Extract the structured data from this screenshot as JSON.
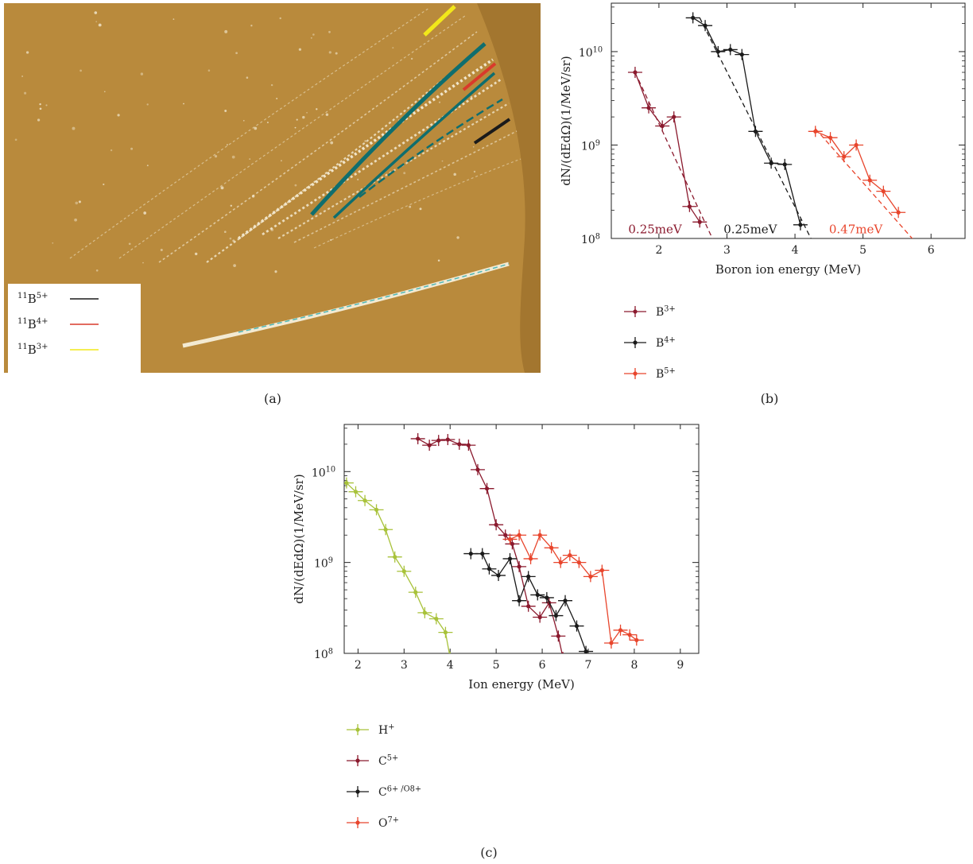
{
  "figure": {
    "panel_labels": [
      "(a)",
      "(b)",
      "(c)"
    ],
    "panel_a": {
      "legend": [
        {
          "mass": "11",
          "ion": "B",
          "charge": "5+",
          "color": "#1a1a1a"
        },
        {
          "mass": "11",
          "ion": "B",
          "charge": "4+",
          "color": "#d93a2b"
        },
        {
          "mass": "11",
          "ion": "B",
          "charge": "3+",
          "color": "#f2e81a"
        }
      ],
      "colors": {
        "background": "#b98a3c",
        "track": "#f3ead2",
        "highlight": "#0f6e6e"
      }
    }
  },
  "chart_data": [
    {
      "type": "scatter",
      "panel": "b",
      "xlabel": "Boron ion energy (MeV)",
      "ylabel": "dN/(dEdΩ)(1/MeV/sr)",
      "xlim": [
        1.3,
        6.5
      ],
      "ylim": [
        100000000,
        33000000000
      ],
      "yscale": "log",
      "xticks": [
        "2",
        "3",
        "4",
        "5",
        "6"
      ],
      "yticks": [
        {
          "base": "10",
          "exp": "8",
          "value": 100000000
        },
        {
          "base": "10",
          "exp": "9",
          "value": 1000000000
        },
        {
          "base": "10",
          "exp": "10",
          "value": 10000000000
        }
      ],
      "legend_position": "below",
      "annotations": [
        {
          "text": "0.25meV",
          "x": 1.55,
          "y": 130000000,
          "color": "#8b1a2e"
        },
        {
          "text": "0.25meV",
          "x": 2.95,
          "y": 130000000,
          "color": "#1a1a1a"
        },
        {
          "text": "0.47meV",
          "x": 4.5,
          "y": 130000000,
          "color": "#e8452c"
        }
      ],
      "series": [
        {
          "name": "B",
          "charge": "3+",
          "color": "#8b1a2e",
          "x": [
            1.65,
            1.85,
            2.05,
            2.22,
            2.45,
            2.6
          ],
          "y": [
            6000000000,
            2500000000,
            1600000000,
            2000000000,
            220000000,
            150000000
          ],
          "fit": {
            "x": [
              1.7,
              2.8
            ],
            "y": [
              5000000000,
              95000000
            ]
          }
        },
        {
          "name": "B",
          "charge": "4+",
          "color": "#1a1a1a",
          "x": [
            2.5,
            2.68,
            2.87,
            3.05,
            3.22,
            3.42,
            3.65,
            3.85,
            4.08
          ],
          "y": [
            23000000000,
            19000000000,
            10000000000,
            10500000000,
            9300000000,
            1400000000,
            640000000,
            620000000,
            140000000
          ],
          "fit": {
            "x": [
              2.6,
              4.25
            ],
            "y": [
              23000000000,
              95000000
            ]
          }
        },
        {
          "name": "B",
          "charge": "5+",
          "color": "#e8452c",
          "x": [
            4.3,
            4.52,
            4.72,
            4.9,
            5.1,
            5.3,
            5.52
          ],
          "y": [
            1400000000,
            1200000000,
            750000000,
            1000000000,
            420000000,
            320000000,
            190000000
          ],
          "fit": {
            "x": [
              4.3,
              5.75
            ],
            "y": [
              1500000000,
              95000000
            ]
          }
        }
      ]
    },
    {
      "type": "scatter",
      "panel": "c",
      "xlabel": "Ion energy (MeV)",
      "ylabel": "dN/(dEdΩ)(1/MeV/sr)",
      "xlim": [
        1.7,
        9.4
      ],
      "ylim": [
        100000000,
        33000000000
      ],
      "yscale": "log",
      "xticks": [
        "2",
        "3",
        "4",
        "5",
        "6",
        "7",
        "8",
        "9"
      ],
      "yticks": [
        {
          "base": "10",
          "exp": "8",
          "value": 100000000
        },
        {
          "base": "10",
          "exp": "9",
          "value": 1000000000
        },
        {
          "base": "10",
          "exp": "10",
          "value": 10000000000
        }
      ],
      "legend_position": "below",
      "series": [
        {
          "name": "H",
          "charge": "+",
          "color": "#a8c23a",
          "x": [
            1.75,
            1.95,
            2.15,
            2.4,
            2.6,
            2.8,
            3.0,
            3.25,
            3.45,
            3.7,
            3.9,
            4.0
          ],
          "y": [
            7500000000,
            6000000000,
            4800000000,
            3800000000,
            2300000000,
            1150000000,
            800000000,
            470000000,
            280000000,
            240000000,
            170000000,
            90000000
          ]
        },
        {
          "name": "C",
          "charge": "5+",
          "color": "#8b1a2e",
          "x": [
            3.3,
            3.55,
            3.75,
            3.95,
            4.2,
            4.4,
            4.6,
            4.8,
            5.0,
            5.2,
            5.35,
            5.5,
            5.7,
            5.95,
            6.15,
            6.35,
            6.45
          ],
          "y": [
            23000000000,
            19500000000,
            22000000000,
            22500000000,
            20000000000,
            19500000000,
            10500000000,
            6500000000,
            2600000000,
            2000000000,
            1600000000,
            900000000,
            330000000,
            250000000,
            360000000,
            155000000,
            90000000
          ]
        },
        {
          "name": "C",
          "charge": "6+ /O8+",
          "color": "#1a1a1a",
          "x": [
            4.45,
            4.7,
            4.85,
            5.05,
            5.3,
            5.5,
            5.7,
            5.9,
            6.1,
            6.3,
            6.5,
            6.75,
            6.95
          ],
          "y": [
            1250000000,
            1250000000,
            850000000,
            720000000,
            1100000000,
            380000000,
            700000000,
            440000000,
            410000000,
            260000000,
            380000000,
            200000000,
            105000000
          ]
        },
        {
          "name": "O",
          "charge": "7+",
          "color": "#e8452c",
          "x": [
            5.3,
            5.5,
            5.75,
            5.95,
            6.2,
            6.4,
            6.6,
            6.8,
            7.05,
            7.3,
            7.5,
            7.7,
            7.9,
            8.05
          ],
          "y": [
            1800000000,
            2000000000,
            1100000000,
            2000000000,
            1450000000,
            1000000000,
            1200000000,
            1000000000,
            700000000,
            820000000,
            130000000,
            180000000,
            160000000,
            140000000
          ]
        }
      ]
    }
  ]
}
